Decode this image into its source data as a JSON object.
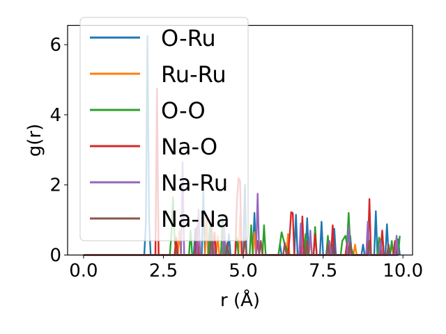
{
  "chart_data": {
    "type": "line",
    "xlabel": "r (Å)",
    "ylabel": "g(r)",
    "xlim": [
      -0.5,
      10.3
    ],
    "ylim": [
      0,
      6.55
    ],
    "xticks": [
      0.0,
      2.5,
      5.0,
      7.5,
      10.0
    ],
    "xtick_labels": [
      "0.0",
      "2.5",
      "5.0",
      "7.5",
      "10.0"
    ],
    "yticks": [
      0,
      2,
      4,
      6
    ],
    "ytick_labels": [
      "0",
      "2",
      "4",
      "6"
    ],
    "grid": false,
    "legend_position": "upper-left",
    "series": [
      {
        "name": "O-Ru",
        "color": "#1f77b4",
        "points": [
          [
            0,
            0
          ],
          [
            1.9,
            0
          ],
          [
            1.95,
            0.9
          ],
          [
            2.0,
            6.25
          ],
          [
            2.05,
            1.0
          ],
          [
            2.1,
            0
          ],
          [
            3.45,
            0
          ],
          [
            3.5,
            0.75
          ],
          [
            3.55,
            0
          ],
          [
            3.7,
            0
          ],
          [
            3.75,
            1.85
          ],
          [
            3.8,
            0
          ],
          [
            4.5,
            0
          ],
          [
            4.55,
            0.6
          ],
          [
            4.6,
            0
          ],
          [
            5.0,
            0
          ],
          [
            5.05,
            2.0
          ],
          [
            5.1,
            0
          ],
          [
            5.3,
            0
          ],
          [
            5.35,
            1.2
          ],
          [
            5.4,
            0
          ],
          [
            6.1,
            0
          ],
          [
            6.15,
            0.3
          ],
          [
            6.2,
            0
          ],
          [
            6.6,
            0
          ],
          [
            6.65,
            1.15
          ],
          [
            6.7,
            0
          ],
          [
            6.95,
            0
          ],
          [
            7.0,
            1.05
          ],
          [
            7.05,
            0
          ],
          [
            7.4,
            0
          ],
          [
            7.45,
            0.95
          ],
          [
            7.5,
            0
          ],
          [
            7.8,
            0
          ],
          [
            7.85,
            0.75
          ],
          [
            7.9,
            0
          ],
          [
            8.3,
            0
          ],
          [
            8.35,
            0.55
          ],
          [
            8.4,
            0
          ],
          [
            8.7,
            0
          ],
          [
            8.75,
            0.3
          ],
          [
            8.8,
            0
          ],
          [
            9.1,
            0
          ],
          [
            9.15,
            1.25
          ],
          [
            9.2,
            0
          ],
          [
            9.45,
            0
          ],
          [
            9.5,
            0.88
          ],
          [
            9.55,
            0
          ],
          [
            9.8,
            0
          ],
          [
            9.85,
            0.45
          ],
          [
            9.9,
            0
          ]
        ]
      },
      {
        "name": "Ru-Ru",
        "color": "#ff7f0e",
        "points": [
          [
            0,
            0
          ],
          [
            2.25,
            0
          ],
          [
            2.3,
            4.1
          ],
          [
            2.35,
            0
          ],
          [
            2.95,
            0
          ],
          [
            3.0,
            0.7
          ],
          [
            3.05,
            0
          ],
          [
            3.8,
            0
          ],
          [
            3.85,
            1.0
          ],
          [
            3.9,
            0
          ],
          [
            4.15,
            0
          ],
          [
            4.2,
            0.55
          ],
          [
            4.25,
            0
          ],
          [
            4.85,
            0
          ],
          [
            4.9,
            1.15
          ],
          [
            4.95,
            0
          ],
          [
            5.3,
            0
          ],
          [
            5.35,
            0.65
          ],
          [
            5.4,
            0
          ],
          [
            6.35,
            0
          ],
          [
            6.4,
            0.6
          ],
          [
            6.45,
            0
          ],
          [
            7.05,
            0
          ],
          [
            7.1,
            0.45
          ],
          [
            7.15,
            0
          ],
          [
            7.65,
            0
          ],
          [
            7.7,
            0.35
          ],
          [
            7.75,
            0
          ],
          [
            8.45,
            0
          ],
          [
            8.5,
            0.3
          ],
          [
            8.55,
            0
          ],
          [
            9.2,
            0
          ],
          [
            9.25,
            0.25
          ],
          [
            9.3,
            0
          ]
        ]
      },
      {
        "name": "O-O",
        "color": "#2ca02c",
        "points": [
          [
            0,
            0
          ],
          [
            2.7,
            0
          ],
          [
            2.75,
            0.6
          ],
          [
            2.8,
            1.65
          ],
          [
            2.85,
            0.5
          ],
          [
            2.9,
            0
          ],
          [
            3.3,
            0
          ],
          [
            3.35,
            0.7
          ],
          [
            3.4,
            0
          ],
          [
            3.9,
            0
          ],
          [
            3.95,
            0.8
          ],
          [
            4.0,
            0
          ],
          [
            4.3,
            0
          ],
          [
            4.35,
            1.05
          ],
          [
            4.4,
            0
          ],
          [
            4.75,
            0
          ],
          [
            4.8,
            0.5
          ],
          [
            4.85,
            0
          ],
          [
            5.2,
            0
          ],
          [
            5.25,
            0.85
          ],
          [
            5.3,
            0
          ],
          [
            5.6,
            0
          ],
          [
            5.65,
            0.85
          ],
          [
            5.7,
            0
          ],
          [
            6.1,
            0
          ],
          [
            6.2,
            0.65
          ],
          [
            6.3,
            0.3
          ],
          [
            6.45,
            0
          ],
          [
            6.9,
            0
          ],
          [
            6.95,
            0.6
          ],
          [
            7.0,
            0
          ],
          [
            7.2,
            0
          ],
          [
            7.25,
            0.8
          ],
          [
            7.3,
            0
          ],
          [
            7.6,
            0
          ],
          [
            7.65,
            0.55
          ],
          [
            7.7,
            0
          ],
          [
            8.05,
            0
          ],
          [
            8.1,
            0.4
          ],
          [
            8.2,
            0.55
          ],
          [
            8.25,
            0.3
          ],
          [
            8.3,
            1.2
          ],
          [
            8.35,
            0.3
          ],
          [
            8.45,
            0
          ],
          [
            8.85,
            0
          ],
          [
            8.9,
            0.4
          ],
          [
            8.95,
            0
          ],
          [
            9.2,
            0
          ],
          [
            9.25,
            0.5
          ],
          [
            9.3,
            0.3
          ],
          [
            9.35,
            0.65
          ],
          [
            9.4,
            0
          ],
          [
            9.6,
            0
          ],
          [
            9.65,
            0.4
          ],
          [
            9.7,
            0
          ],
          [
            9.85,
            0
          ],
          [
            9.9,
            0.55
          ]
        ]
      },
      {
        "name": "Na-O",
        "color": "#d62728",
        "points": [
          [
            0,
            0
          ],
          [
            2.25,
            0
          ],
          [
            2.3,
            4.75
          ],
          [
            2.35,
            0
          ],
          [
            2.85,
            0
          ],
          [
            2.9,
            0.5
          ],
          [
            2.95,
            0
          ],
          [
            3.5,
            0
          ],
          [
            3.55,
            0.8
          ],
          [
            3.6,
            0
          ],
          [
            4.05,
            0
          ],
          [
            4.1,
            0.65
          ],
          [
            4.15,
            0
          ],
          [
            4.75,
            0
          ],
          [
            4.8,
            1.5
          ],
          [
            4.85,
            2.2
          ],
          [
            4.9,
            2.1
          ],
          [
            4.95,
            0
          ],
          [
            5.4,
            0
          ],
          [
            5.45,
            0.4
          ],
          [
            5.5,
            0
          ],
          [
            6.4,
            0
          ],
          [
            6.45,
            0.5
          ],
          [
            6.5,
            1.22
          ],
          [
            6.55,
            1.2
          ],
          [
            6.6,
            0
          ],
          [
            6.8,
            0
          ],
          [
            6.85,
            1.1
          ],
          [
            6.9,
            0
          ],
          [
            7.2,
            0
          ],
          [
            7.25,
            0.6
          ],
          [
            7.3,
            0
          ],
          [
            7.75,
            0
          ],
          [
            7.8,
            0.85
          ],
          [
            7.85,
            0
          ],
          [
            8.2,
            0
          ],
          [
            8.25,
            0.35
          ],
          [
            8.3,
            0
          ],
          [
            8.9,
            0
          ],
          [
            8.95,
            1.6
          ],
          [
            9.0,
            0
          ],
          [
            9.3,
            0
          ],
          [
            9.35,
            0.7
          ],
          [
            9.4,
            0
          ],
          [
            9.7,
            0
          ],
          [
            9.75,
            0.4
          ],
          [
            9.8,
            0
          ]
        ]
      },
      {
        "name": "Na-Ru",
        "color": "#9467bd",
        "points": [
          [
            0,
            0
          ],
          [
            3.05,
            0
          ],
          [
            3.1,
            2.65
          ],
          [
            3.15,
            0
          ],
          [
            3.55,
            0
          ],
          [
            3.6,
            1.3
          ],
          [
            3.65,
            0
          ],
          [
            4.0,
            0
          ],
          [
            4.05,
            0.45
          ],
          [
            4.1,
            0
          ],
          [
            4.35,
            0
          ],
          [
            4.4,
            0.85
          ],
          [
            4.45,
            0
          ],
          [
            5.0,
            0
          ],
          [
            5.05,
            0.65
          ],
          [
            5.1,
            0
          ],
          [
            5.4,
            0
          ],
          [
            5.45,
            1.75
          ],
          [
            5.5,
            0
          ],
          [
            6.75,
            0
          ],
          [
            6.8,
            0.9
          ],
          [
            6.85,
            0
          ],
          [
            7.05,
            0
          ],
          [
            7.1,
            0.7
          ],
          [
            7.15,
            0
          ],
          [
            7.65,
            0
          ],
          [
            7.7,
            0.4
          ],
          [
            7.75,
            0
          ],
          [
            8.25,
            0
          ],
          [
            8.3,
            0.8
          ],
          [
            8.35,
            0
          ],
          [
            8.85,
            0
          ],
          [
            8.9,
            0.95
          ],
          [
            8.95,
            0
          ],
          [
            9.25,
            0
          ],
          [
            9.3,
            0.4
          ],
          [
            9.35,
            0
          ],
          [
            9.75,
            0
          ],
          [
            9.8,
            0.55
          ],
          [
            9.85,
            0
          ]
        ]
      },
      {
        "name": "Na-Na",
        "color": "#8c564b",
        "points": [
          [
            0,
            0
          ],
          [
            3.95,
            0
          ],
          [
            4.0,
            0.9
          ],
          [
            4.05,
            0
          ],
          [
            4.45,
            0
          ],
          [
            4.5,
            0.35
          ],
          [
            4.55,
            0
          ],
          [
            5.0,
            0
          ],
          [
            5.05,
            0.5
          ],
          [
            5.1,
            0
          ],
          [
            5.5,
            0
          ],
          [
            5.55,
            0.4
          ],
          [
            5.6,
            0
          ],
          [
            6.25,
            0
          ],
          [
            6.3,
            0.35
          ],
          [
            6.35,
            0
          ],
          [
            6.95,
            0
          ],
          [
            7.0,
            0.4
          ],
          [
            7.05,
            0
          ],
          [
            7.6,
            0
          ],
          [
            7.65,
            0.3
          ],
          [
            7.7,
            0
          ],
          [
            8.3,
            0
          ],
          [
            8.35,
            0.35
          ],
          [
            8.4,
            0
          ],
          [
            8.9,
            0
          ],
          [
            8.95,
            0.4
          ],
          [
            9.0,
            0
          ],
          [
            9.5,
            0
          ],
          [
            9.55,
            0.3
          ],
          [
            9.6,
            0
          ]
        ]
      }
    ]
  }
}
